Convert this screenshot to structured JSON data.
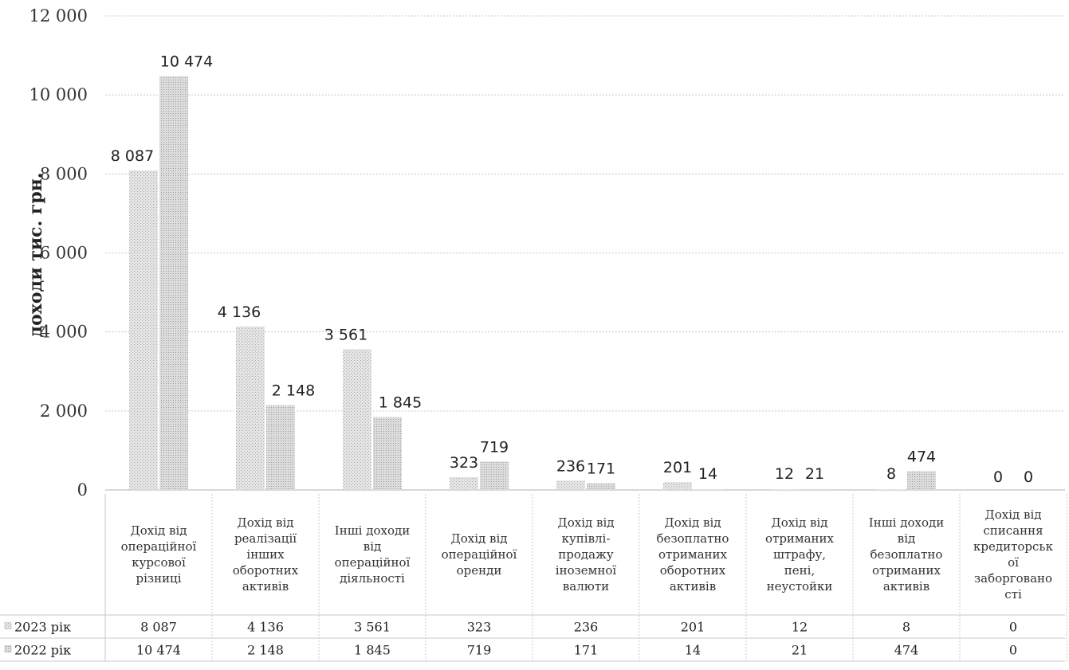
{
  "chart_data": {
    "type": "bar",
    "ylabel": "доходи тис. грн.",
    "ylim": [
      0,
      12000
    ],
    "yticks": [
      "0",
      "2 000",
      "4 000",
      "6 000",
      "8 000",
      "10 000",
      "12 000"
    ],
    "ytick_values": [
      0,
      2000,
      4000,
      6000,
      8000,
      10000,
      12000
    ],
    "grid": true,
    "legend": "data-table-bottom",
    "categories": [
      [
        "Дохід від",
        "операційної",
        "курсової",
        "різниці"
      ],
      [
        "Дохід від",
        "реалізації",
        "інших",
        "оборотних",
        "активів"
      ],
      [
        "Інші доходи",
        "від",
        "операційної",
        "діяльності"
      ],
      [
        "Дохід від",
        "операційної",
        "оренди"
      ],
      [
        "Дохід від",
        "купівлі-",
        "продажу",
        "іноземної",
        "валюти"
      ],
      [
        "Дохід від",
        "безоплатно",
        "отриманих",
        "оборотних",
        "активів"
      ],
      [
        "Дохід від",
        "отриманих",
        "штрафу,",
        "пені,",
        "неустойки"
      ],
      [
        "Інші доходи",
        "від",
        "безоплатно",
        "отриманих",
        "активів"
      ],
      [
        "Дохід від",
        "списання",
        "кредиторськ",
        "ої",
        "заборговано",
        "сті"
      ]
    ],
    "series": [
      {
        "name": "2023 рік",
        "values": [
          8087,
          4136,
          3561,
          323,
          236,
          201,
          12,
          8,
          0
        ],
        "labels": [
          "8 087",
          "4 136",
          "3 561",
          "323",
          "236",
          "201",
          "12",
          "8",
          "0"
        ],
        "color": "#d8d8d8"
      },
      {
        "name": "2022 рік",
        "values": [
          10474,
          2148,
          1845,
          719,
          171,
          14,
          21,
          474,
          0
        ],
        "labels": [
          "10 474",
          "2 148",
          "1 845",
          "719",
          "171",
          "14",
          "21",
          "474",
          "0"
        ],
        "color": "#cfcfcf"
      }
    ]
  }
}
